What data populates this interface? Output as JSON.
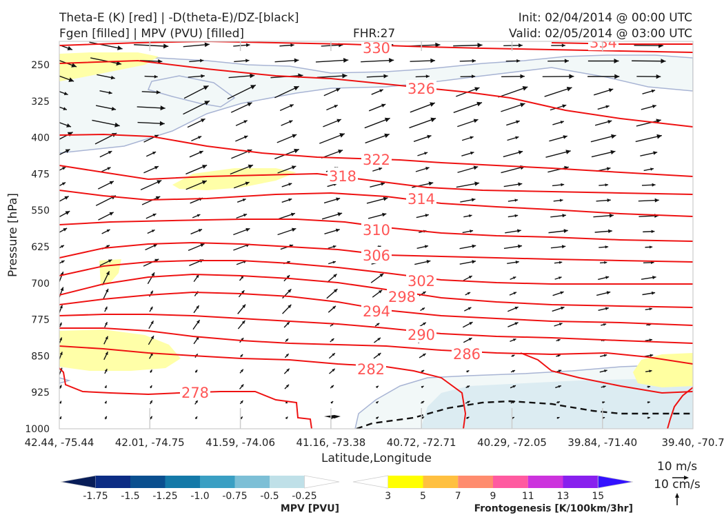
{
  "header": {
    "title_left_1": "Theta-E (K) [red] | -D(theta-E)/DZ-[black]",
    "title_left_2": "Fgen [filled] | MPV (PVU) [filled]",
    "fhr": "FHR:27",
    "init": "Init: 02/04/2014 @ 00:00 UTC",
    "valid": "Valid: 02/05/2014 @ 03:00 UTC"
  },
  "chart_data": {
    "type": "cross-section",
    "ylabel": "Pressure [hPa]",
    "xlabel": "Latitude,Longitude",
    "y_scale": "linear-inverted",
    "ylim": [
      1000,
      200
    ],
    "yticks": [
      250,
      325,
      400,
      475,
      550,
      625,
      700,
      775,
      850,
      925,
      1000
    ],
    "xtick_labels": [
      "42.44, -75.44",
      "42.01, -74.75",
      "41.59, -74.06",
      "41.16, -73.38",
      "40.72, -72.71",
      "40.29, -72.05",
      "39.84, -71.40",
      "39.40, -70.7"
    ],
    "theta_e_contour_labels": [
      {
        "value": "330",
        "color": "#ff5555"
      },
      {
        "value": "334",
        "color": "#ff5555"
      },
      {
        "value": "326",
        "color": "#ff5555"
      },
      {
        "value": "322",
        "color": "#ff5555"
      },
      {
        "value": "318",
        "color": "#ff5555"
      },
      {
        "value": "314",
        "color": "#ff5555"
      },
      {
        "value": "310",
        "color": "#ff5555"
      },
      {
        "value": "306",
        "color": "#ff5555"
      },
      {
        "value": "302",
        "color": "#ff5555"
      },
      {
        "value": "298",
        "color": "#ff5555"
      },
      {
        "value": "294",
        "color": "#ff5555"
      },
      {
        "value": "290",
        "color": "#ff5555"
      },
      {
        "value": "286",
        "color": "#ff5555"
      },
      {
        "value": "282",
        "color": "#ff5555"
      },
      {
        "value": "278",
        "color": "#ff5555"
      }
    ],
    "contour_color": "#ee1111",
    "grid": false
  },
  "wind_key": {
    "horizontal": "10 m/s",
    "vertical": "10 cm/s"
  },
  "colorbars": {
    "mpv": {
      "label": "MPV [PVU]",
      "ticks": [
        "-1.75",
        "-1.5",
        "-1.25",
        "-1.0",
        "-0.75",
        "-0.5",
        "-0.25"
      ],
      "colors": [
        "#081d58",
        "#0c2c84",
        "#0a4f8f",
        "#1479a8",
        "#3a9fc3",
        "#7cbfd6",
        "#bfe0e8",
        "#ffffff"
      ]
    },
    "fgen": {
      "label": "Frontogenesis [K/100km/3hr]",
      "ticks": [
        "3",
        "5",
        "7",
        "9",
        "11",
        "13",
        "15"
      ],
      "colors": [
        "#ffffff",
        "#ffff00",
        "#ffc040",
        "#ff8c6e",
        "#ff5aa0",
        "#cc33dd",
        "#8820ee",
        "#3311ff"
      ]
    }
  }
}
